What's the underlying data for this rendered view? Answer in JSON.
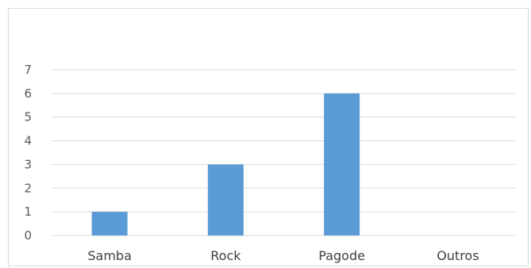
{
  "chart_data": {
    "type": "bar",
    "categories": [
      "Samba",
      "Rock",
      "Pagode",
      "Outros"
    ],
    "values": [
      1,
      3,
      6,
      0
    ],
    "ylim": [
      0,
      7
    ],
    "yticks": [
      0,
      1,
      2,
      3,
      4,
      5,
      6,
      7
    ],
    "grid": true,
    "legend": "none",
    "bar_color": "#5b9bd5",
    "grid_color": "#d9d9d9",
    "title": "",
    "xlabel": "",
    "ylabel": ""
  }
}
